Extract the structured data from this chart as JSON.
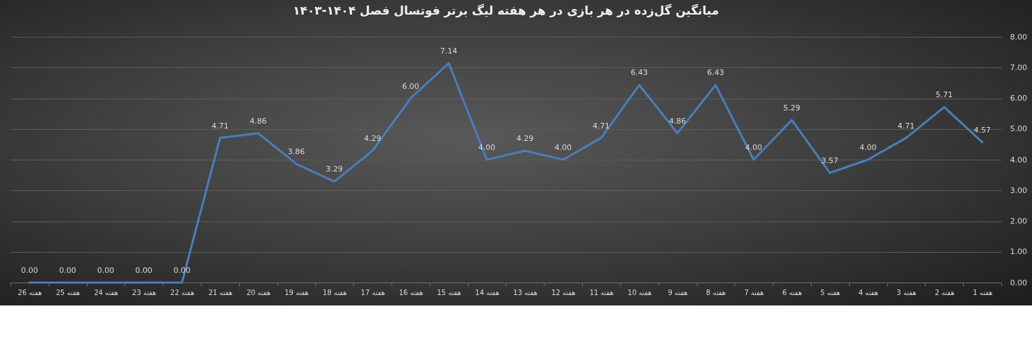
{
  "chart_data": {
    "type": "line",
    "title": "میانگین گل‌زده در هر بازی در هر هفته لیگ برتر فوتسال فصل ۱۴۰۴-۱۴۰۳",
    "categories": [
      "هفته 26",
      "هفته 25",
      "هفته 24",
      "هفته 23",
      "هفته 22",
      "هفته 21",
      "هفته 20",
      "هفته 19",
      "هفته 18",
      "هفته 17",
      "هفته 16",
      "هفته 15",
      "هفته 14",
      "هفته 13",
      "هفته 12",
      "هفته 11",
      "هفته 10",
      "هفته 9",
      "هفته 8",
      "هفته 7",
      "هفته 6",
      "هفته 5",
      "هفته 4",
      "هفته 3",
      "هفته 2",
      "هفته 1"
    ],
    "values": [
      0,
      0,
      0,
      0,
      0,
      4.71,
      4.86,
      3.86,
      3.29,
      4.29,
      6.0,
      7.14,
      4.0,
      4.29,
      4.0,
      4.71,
      6.43,
      4.86,
      6.43,
      4.0,
      5.29,
      3.57,
      4.0,
      4.71,
      5.71,
      4.57
    ],
    "value_labels": [
      "0.00",
      "0.00",
      "0.00",
      "0.00",
      "0.00",
      "4.71",
      "4.86",
      "3.86",
      "3.29",
      "4.29",
      "6.00",
      "7.14",
      "4.00",
      "4.29",
      "4.00",
      "4.71",
      "6.43",
      "4.86",
      "6.43",
      "4.00",
      "5.29",
      "3.57",
      "4.00",
      "4.71",
      "5.71",
      "4.57"
    ],
    "color": "#4a7ebb",
    "line_style": "solid",
    "ylim": [
      0,
      8
    ],
    "yticks": [
      {
        "value": 0,
        "label": "0.00"
      },
      {
        "value": 1,
        "label": "1.00"
      },
      {
        "value": 2,
        "label": "2.00"
      },
      {
        "value": 3,
        "label": "3.00"
      },
      {
        "value": 4,
        "label": "4.00"
      },
      {
        "value": 5,
        "label": "5.00"
      },
      {
        "value": 6,
        "label": "6.00"
      },
      {
        "value": 7,
        "label": "7.00"
      },
      {
        "value": 8,
        "label": "8.00"
      }
    ],
    "grid": "y"
  }
}
